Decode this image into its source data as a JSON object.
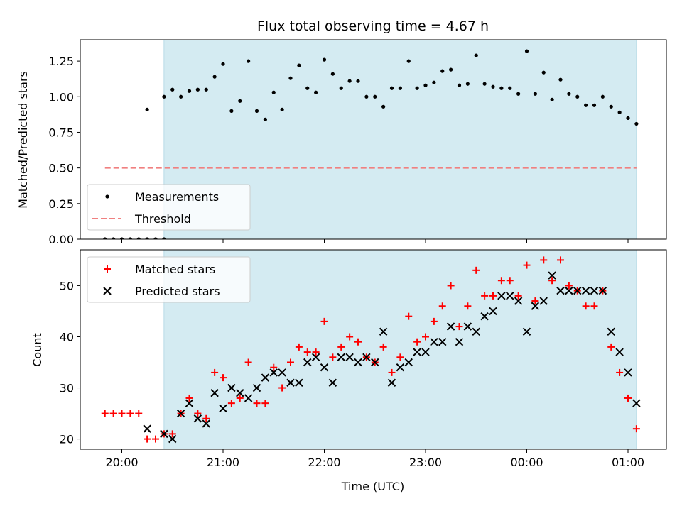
{
  "chart_data": [
    {
      "type": "scatter",
      "panel": "top",
      "title": "Flux total observing time = 4.67 h",
      "ylabel": "Matched/Predicted stars",
      "xlabel": "",
      "ylim": [
        0,
        1.4
      ],
      "yticks": [
        "0.00",
        "0.25",
        "0.50",
        "0.75",
        "1.00",
        "1.25"
      ],
      "ytick_values": [
        0,
        0.25,
        0.5,
        0.75,
        1.0,
        1.25
      ],
      "xtick_values": [
        "20:00",
        "21:00",
        "22:00",
        "23:00",
        "00:00",
        "01:00"
      ],
      "observing_window": {
        "start": "20:25",
        "end": "01:05",
        "color": "#d4ebf2"
      },
      "legend": {
        "position": "lower-left",
        "entries": [
          "Measurements",
          "Threshold"
        ]
      },
      "series": [
        {
          "name": "Measurements",
          "color": "#000000",
          "marker": "dot",
          "points": [
            [
              "19:50",
              0
            ],
            [
              "19:55",
              0
            ],
            [
              "20:00",
              0
            ],
            [
              "20:05",
              0
            ],
            [
              "20:10",
              0
            ],
            [
              "20:15",
              0
            ],
            [
              "20:20",
              0
            ],
            [
              "20:25",
              0
            ],
            [
              "20:15",
              0.91
            ],
            [
              "20:25",
              1.0
            ],
            [
              "20:30",
              1.05
            ],
            [
              "20:35",
              1.0
            ],
            [
              "20:40",
              1.04
            ],
            [
              "20:45",
              1.05
            ],
            [
              "20:50",
              1.05
            ],
            [
              "20:55",
              1.14
            ],
            [
              "21:00",
              1.23
            ],
            [
              "21:05",
              0.9
            ],
            [
              "21:10",
              0.97
            ],
            [
              "21:15",
              1.25
            ],
            [
              "21:20",
              0.9
            ],
            [
              "21:25",
              0.84
            ],
            [
              "21:30",
              1.03
            ],
            [
              "21:35",
              0.91
            ],
            [
              "21:40",
              1.13
            ],
            [
              "21:45",
              1.22
            ],
            [
              "21:50",
              1.06
            ],
            [
              "21:55",
              1.03
            ],
            [
              "22:00",
              1.26
            ],
            [
              "22:05",
              1.16
            ],
            [
              "22:10",
              1.06
            ],
            [
              "22:15",
              1.11
            ],
            [
              "22:20",
              1.11
            ],
            [
              "22:25",
              1.0
            ],
            [
              "22:30",
              1.0
            ],
            [
              "22:35",
              0.93
            ],
            [
              "22:40",
              1.06
            ],
            [
              "22:45",
              1.06
            ],
            [
              "22:50",
              1.25
            ],
            [
              "22:55",
              1.06
            ],
            [
              "23:00",
              1.08
            ],
            [
              "23:05",
              1.1
            ],
            [
              "23:10",
              1.18
            ],
            [
              "23:15",
              1.19
            ],
            [
              "23:20",
              1.08
            ],
            [
              "23:25",
              1.09
            ],
            [
              "23:30",
              1.29
            ],
            [
              "23:35",
              1.09
            ],
            [
              "23:40",
              1.07
            ],
            [
              "23:45",
              1.06
            ],
            [
              "23:50",
              1.06
            ],
            [
              "23:55",
              1.02
            ],
            [
              "00:00",
              1.32
            ],
            [
              "00:05",
              1.02
            ],
            [
              "00:10",
              1.17
            ],
            [
              "00:15",
              0.98
            ],
            [
              "00:20",
              1.12
            ],
            [
              "00:25",
              1.02
            ],
            [
              "00:30",
              1.0
            ],
            [
              "00:35",
              0.94
            ],
            [
              "00:40",
              0.94
            ],
            [
              "00:45",
              1.0
            ],
            [
              "00:50",
              0.93
            ],
            [
              "00:55",
              0.89
            ],
            [
              "01:00",
              0.85
            ],
            [
              "01:05",
              0.81
            ]
          ]
        },
        {
          "name": "Threshold",
          "color": "#f08080",
          "style": "dashed",
          "points": [
            [
              "19:50",
              0.5
            ],
            [
              "01:05",
              0.5
            ]
          ]
        }
      ]
    },
    {
      "type": "scatter",
      "panel": "bottom",
      "title": "",
      "ylabel": "Count",
      "xlabel": "Time (UTC)",
      "ylim": [
        18,
        57
      ],
      "yticks": [
        "20",
        "30",
        "40",
        "50"
      ],
      "ytick_values": [
        20,
        30,
        40,
        50
      ],
      "xticks": [
        "20:00",
        "21:00",
        "22:00",
        "23:00",
        "00:00",
        "01:00"
      ],
      "observing_window": {
        "start": "20:25",
        "end": "01:05",
        "color": "#d4ebf2"
      },
      "legend": {
        "position": "upper-left",
        "entries": [
          "Matched stars",
          "Predicted stars"
        ]
      },
      "series": [
        {
          "name": "Matched stars",
          "color": "#ff0000",
          "marker": "plus",
          "points": [
            [
              "19:50",
              25
            ],
            [
              "19:55",
              25
            ],
            [
              "20:00",
              25
            ],
            [
              "20:05",
              25
            ],
            [
              "20:10",
              25
            ],
            [
              "20:15",
              20
            ],
            [
              "20:20",
              20
            ],
            [
              "20:25",
              21
            ],
            [
              "20:30",
              21
            ],
            [
              "20:35",
              25
            ],
            [
              "20:40",
              28
            ],
            [
              "20:45",
              25
            ],
            [
              "20:50",
              24
            ],
            [
              "20:55",
              33
            ],
            [
              "21:00",
              32
            ],
            [
              "21:05",
              27
            ],
            [
              "21:10",
              28
            ],
            [
              "21:15",
              35
            ],
            [
              "21:20",
              27
            ],
            [
              "21:25",
              27
            ],
            [
              "21:30",
              34
            ],
            [
              "21:35",
              30
            ],
            [
              "21:40",
              35
            ],
            [
              "21:45",
              38
            ],
            [
              "21:50",
              37
            ],
            [
              "21:55",
              37
            ],
            [
              "22:00",
              43
            ],
            [
              "22:05",
              36
            ],
            [
              "22:10",
              38
            ],
            [
              "22:15",
              40
            ],
            [
              "22:20",
              39
            ],
            [
              "22:25",
              36
            ],
            [
              "22:30",
              35
            ],
            [
              "22:35",
              38
            ],
            [
              "22:40",
              33
            ],
            [
              "22:45",
              36
            ],
            [
              "22:50",
              44
            ],
            [
              "22:55",
              39
            ],
            [
              "23:00",
              40
            ],
            [
              "23:05",
              43
            ],
            [
              "23:10",
              46
            ],
            [
              "23:15",
              50
            ],
            [
              "23:20",
              42
            ],
            [
              "23:25",
              46
            ],
            [
              "23:30",
              53
            ],
            [
              "23:35",
              48
            ],
            [
              "23:40",
              48
            ],
            [
              "23:45",
              51
            ],
            [
              "23:50",
              51
            ],
            [
              "23:55",
              48
            ],
            [
              "00:00",
              54
            ],
            [
              "00:05",
              47
            ],
            [
              "00:10",
              55
            ],
            [
              "00:15",
              51
            ],
            [
              "00:20",
              55
            ],
            [
              "00:25",
              50
            ],
            [
              "00:30",
              49
            ],
            [
              "00:35",
              46
            ],
            [
              "00:40",
              46
            ],
            [
              "00:45",
              49
            ],
            [
              "00:50",
              38
            ],
            [
              "00:55",
              33
            ],
            [
              "01:00",
              28
            ],
            [
              "01:05",
              22
            ]
          ]
        },
        {
          "name": "Predicted stars",
          "color": "#000000",
          "marker": "x",
          "points": [
            [
              "20:15",
              22
            ],
            [
              "20:25",
              21
            ],
            [
              "20:30",
              20
            ],
            [
              "20:35",
              25
            ],
            [
              "20:40",
              27
            ],
            [
              "20:45",
              24
            ],
            [
              "20:50",
              23
            ],
            [
              "20:55",
              29
            ],
            [
              "21:00",
              26
            ],
            [
              "21:05",
              30
            ],
            [
              "21:10",
              29
            ],
            [
              "21:15",
              28
            ],
            [
              "21:20",
              30
            ],
            [
              "21:25",
              32
            ],
            [
              "21:30",
              33
            ],
            [
              "21:35",
              33
            ],
            [
              "21:40",
              31
            ],
            [
              "21:45",
              31
            ],
            [
              "21:50",
              35
            ],
            [
              "21:55",
              36
            ],
            [
              "22:00",
              34
            ],
            [
              "22:05",
              31
            ],
            [
              "22:10",
              36
            ],
            [
              "22:15",
              36
            ],
            [
              "22:20",
              35
            ],
            [
              "22:25",
              36
            ],
            [
              "22:30",
              35
            ],
            [
              "22:35",
              41
            ],
            [
              "22:40",
              31
            ],
            [
              "22:45",
              34
            ],
            [
              "22:50",
              35
            ],
            [
              "22:55",
              37
            ],
            [
              "23:00",
              37
            ],
            [
              "23:05",
              39
            ],
            [
              "23:10",
              39
            ],
            [
              "23:15",
              42
            ],
            [
              "23:20",
              39
            ],
            [
              "23:25",
              42
            ],
            [
              "23:30",
              41
            ],
            [
              "23:35",
              44
            ],
            [
              "23:40",
              45
            ],
            [
              "23:45",
              48
            ],
            [
              "23:50",
              48
            ],
            [
              "23:55",
              47
            ],
            [
              "00:00",
              41
            ],
            [
              "00:05",
              46
            ],
            [
              "00:10",
              47
            ],
            [
              "00:15",
              52
            ],
            [
              "00:20",
              49
            ],
            [
              "00:25",
              49
            ],
            [
              "00:30",
              49
            ],
            [
              "00:35",
              49
            ],
            [
              "00:40",
              49
            ],
            [
              "00:45",
              49
            ],
            [
              "00:50",
              41
            ],
            [
              "00:55",
              37
            ],
            [
              "01:00",
              33
            ],
            [
              "01:05",
              27
            ]
          ]
        }
      ]
    }
  ]
}
